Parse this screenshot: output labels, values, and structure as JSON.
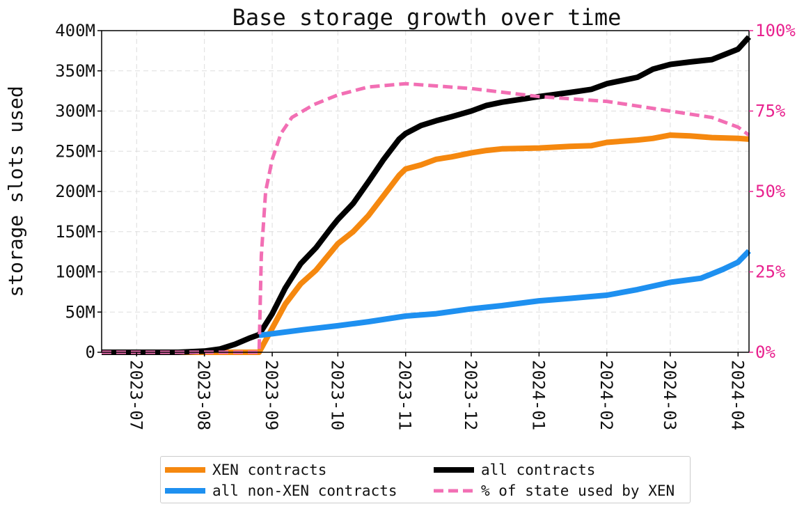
{
  "colors": {
    "xen": "#f5880f",
    "nonxen": "#1e90f0",
    "all": "#000000",
    "pct": "#f26fb4",
    "pct_axis": "#e8218e",
    "grid": "#dddddd"
  },
  "chart_data": {
    "type": "line",
    "title": "Base storage growth over time",
    "ylabel": "storage slots used",
    "xlabel": "",
    "x_range": [
      "2023-06-15",
      "2024-04-06"
    ],
    "ylim": [
      0,
      400000000
    ],
    "ylim_right": [
      0,
      100
    ],
    "yticks": [
      {
        "value": 0,
        "label": "0"
      },
      {
        "value": 50000000,
        "label": "50M"
      },
      {
        "value": 100000000,
        "label": "100M"
      },
      {
        "value": 150000000,
        "label": "150M"
      },
      {
        "value": 200000000,
        "label": "200M"
      },
      {
        "value": 250000000,
        "label": "250M"
      },
      {
        "value": 300000000,
        "label": "300M"
      },
      {
        "value": 350000000,
        "label": "350M"
      },
      {
        "value": 400000000,
        "label": "400M"
      }
    ],
    "yticks_right": [
      {
        "value": 0,
        "label": "0%"
      },
      {
        "value": 25,
        "label": "25%"
      },
      {
        "value": 50,
        "label": "50%"
      },
      {
        "value": 75,
        "label": "75%"
      },
      {
        "value": 100,
        "label": "100%"
      }
    ],
    "xticks": [
      {
        "date": "2023-07-01",
        "label": "2023-07"
      },
      {
        "date": "2023-08-01",
        "label": "2023-08"
      },
      {
        "date": "2023-09-01",
        "label": "2023-09"
      },
      {
        "date": "2023-10-01",
        "label": "2023-10"
      },
      {
        "date": "2023-11-01",
        "label": "2023-11"
      },
      {
        "date": "2023-12-01",
        "label": "2023-12"
      },
      {
        "date": "2024-01-01",
        "label": "2024-01"
      },
      {
        "date": "2024-02-01",
        "label": "2024-02"
      },
      {
        "date": "2024-03-01",
        "label": "2024-03"
      },
      {
        "date": "2024-04-01",
        "label": "2024-04"
      }
    ],
    "grid": true,
    "legend_position": "bottom-center",
    "series": [
      {
        "key": "all",
        "name": "all contracts",
        "axis": "left",
        "style": "solid",
        "points": [
          [
            "2023-06-15",
            0
          ],
          [
            "2023-07-20",
            0
          ],
          [
            "2023-08-01",
            1500000
          ],
          [
            "2023-08-08",
            4000000
          ],
          [
            "2023-08-15",
            10000000
          ],
          [
            "2023-08-22",
            18000000
          ],
          [
            "2023-08-26",
            22000000
          ],
          [
            "2023-09-01",
            48000000
          ],
          [
            "2023-09-07",
            80000000
          ],
          [
            "2023-09-14",
            110000000
          ],
          [
            "2023-09-21",
            130000000
          ],
          [
            "2023-09-28",
            155000000
          ],
          [
            "2023-10-01",
            165000000
          ],
          [
            "2023-10-08",
            185000000
          ],
          [
            "2023-10-15",
            212000000
          ],
          [
            "2023-10-22",
            240000000
          ],
          [
            "2023-10-29",
            265000000
          ],
          [
            "2023-11-01",
            272000000
          ],
          [
            "2023-11-08",
            282000000
          ],
          [
            "2023-11-15",
            288000000
          ],
          [
            "2023-11-22",
            293000000
          ],
          [
            "2023-12-01",
            300000000
          ],
          [
            "2023-12-08",
            307000000
          ],
          [
            "2023-12-15",
            311000000
          ],
          [
            "2024-01-01",
            318000000
          ],
          [
            "2024-01-15",
            323000000
          ],
          [
            "2024-01-25",
            327000000
          ],
          [
            "2024-02-01",
            334000000
          ],
          [
            "2024-02-15",
            342000000
          ],
          [
            "2024-02-22",
            352000000
          ],
          [
            "2024-03-01",
            358000000
          ],
          [
            "2024-03-10",
            361000000
          ],
          [
            "2024-03-20",
            364000000
          ],
          [
            "2024-04-01",
            377000000
          ],
          [
            "2024-04-06",
            392000000
          ]
        ]
      },
      {
        "key": "xen",
        "name": "XEN contracts",
        "axis": "left",
        "style": "solid",
        "points": [
          [
            "2023-06-15",
            0
          ],
          [
            "2023-08-26",
            0
          ],
          [
            "2023-08-28",
            10000000
          ],
          [
            "2023-09-01",
            30000000
          ],
          [
            "2023-09-07",
            60000000
          ],
          [
            "2023-09-14",
            85000000
          ],
          [
            "2023-09-21",
            102000000
          ],
          [
            "2023-09-28",
            125000000
          ],
          [
            "2023-10-01",
            135000000
          ],
          [
            "2023-10-08",
            150000000
          ],
          [
            "2023-10-15",
            170000000
          ],
          [
            "2023-10-22",
            195000000
          ],
          [
            "2023-10-29",
            220000000
          ],
          [
            "2023-11-01",
            228000000
          ],
          [
            "2023-11-08",
            233000000
          ],
          [
            "2023-11-15",
            240000000
          ],
          [
            "2023-11-22",
            243000000
          ],
          [
            "2023-12-01",
            248000000
          ],
          [
            "2023-12-08",
            251000000
          ],
          [
            "2023-12-15",
            253000000
          ],
          [
            "2024-01-01",
            254000000
          ],
          [
            "2024-01-15",
            256000000
          ],
          [
            "2024-01-25",
            257000000
          ],
          [
            "2024-02-01",
            261000000
          ],
          [
            "2024-02-15",
            264000000
          ],
          [
            "2024-02-22",
            266000000
          ],
          [
            "2024-03-01",
            270000000
          ],
          [
            "2024-03-10",
            269000000
          ],
          [
            "2024-03-20",
            267000000
          ],
          [
            "2024-04-01",
            266000000
          ],
          [
            "2024-04-06",
            265000000
          ]
        ]
      },
      {
        "key": "nonxen",
        "name": "all non-XEN contracts",
        "axis": "left",
        "style": "solid",
        "points": [
          [
            "2023-08-26",
            21000000
          ],
          [
            "2023-09-01",
            23000000
          ],
          [
            "2023-09-15",
            28000000
          ],
          [
            "2023-10-01",
            33000000
          ],
          [
            "2023-10-15",
            38000000
          ],
          [
            "2023-11-01",
            45000000
          ],
          [
            "2023-11-15",
            48000000
          ],
          [
            "2023-12-01",
            54000000
          ],
          [
            "2023-12-15",
            58000000
          ],
          [
            "2024-01-01",
            64000000
          ],
          [
            "2024-01-15",
            67000000
          ],
          [
            "2024-02-01",
            71000000
          ],
          [
            "2024-02-15",
            78000000
          ],
          [
            "2024-03-01",
            87000000
          ],
          [
            "2024-03-15",
            92000000
          ],
          [
            "2024-03-25",
            103000000
          ],
          [
            "2024-04-01",
            112000000
          ],
          [
            "2024-04-06",
            126000000
          ]
        ]
      },
      {
        "key": "pct",
        "name": "% of state used by XEN",
        "axis": "right",
        "style": "dashed",
        "points": [
          [
            "2023-06-15",
            0
          ],
          [
            "2023-08-26",
            0
          ],
          [
            "2023-08-27",
            30
          ],
          [
            "2023-08-29",
            50
          ],
          [
            "2023-09-01",
            60
          ],
          [
            "2023-09-05",
            68
          ],
          [
            "2023-09-10",
            73
          ],
          [
            "2023-09-20",
            77
          ],
          [
            "2023-10-01",
            80
          ],
          [
            "2023-10-15",
            82.5
          ],
          [
            "2023-11-01",
            83.5
          ],
          [
            "2023-12-01",
            82
          ],
          [
            "2024-01-01",
            79.5
          ],
          [
            "2024-02-01",
            78
          ],
          [
            "2024-03-01",
            75
          ],
          [
            "2024-03-20",
            73
          ],
          [
            "2024-04-01",
            70
          ],
          [
            "2024-04-06",
            67.5
          ]
        ]
      }
    ]
  }
}
